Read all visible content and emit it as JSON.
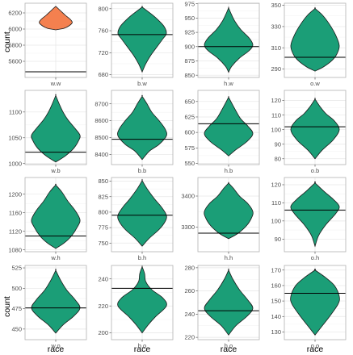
{
  "chart_data": {
    "type": "violin",
    "ylabel": "count",
    "xlabel": "race",
    "grid": true,
    "colors": {
      "highlight_fill": "#f4804f",
      "fill": "#1b9e77",
      "outline": "#1a1a1a",
      "reference_line": "#000000",
      "panel_border": "#b3b3b3",
      "grid_major": "#e6e6e6",
      "grid_minor": "#f2f2f2"
    },
    "panels": [
      {
        "label": "w.w",
        "highlight": true,
        "ylim": [
          5400,
          6320
        ],
        "yticks": [
          5600,
          5800,
          6000,
          6200
        ],
        "reference": 5470,
        "violin": [
          [
            5990,
            0.0
          ],
          [
            6010,
            0.35
          ],
          [
            6040,
            0.55
          ],
          [
            6080,
            0.68
          ],
          [
            6120,
            0.6
          ],
          [
            6170,
            0.4
          ],
          [
            6220,
            0.22
          ],
          [
            6260,
            0.08
          ],
          [
            6280,
            0.0
          ]
        ]
      },
      {
        "label": "b.w",
        "ylim": [
          675,
          810
        ],
        "yticks": [
          680,
          720,
          760,
          800
        ],
        "reference": 753,
        "violin": [
          [
            685,
            0.0
          ],
          [
            700,
            0.15
          ],
          [
            715,
            0.35
          ],
          [
            730,
            0.6
          ],
          [
            745,
            0.85
          ],
          [
            755,
            1.0
          ],
          [
            768,
            0.9
          ],
          [
            782,
            0.6
          ],
          [
            793,
            0.3
          ],
          [
            803,
            0.0
          ]
        ]
      },
      {
        "label": "h.w",
        "ylim": [
          846,
          976
        ],
        "yticks": [
          850,
          875,
          900,
          925,
          950,
          975
        ],
        "reference": 900,
        "violin": [
          [
            855,
            0.0
          ],
          [
            865,
            0.12
          ],
          [
            880,
            0.45
          ],
          [
            893,
            0.85
          ],
          [
            903,
            1.0
          ],
          [
            915,
            0.85
          ],
          [
            930,
            0.5
          ],
          [
            945,
            0.25
          ],
          [
            958,
            0.1
          ],
          [
            968,
            0.0
          ]
        ]
      },
      {
        "label": "o.w",
        "ylim": [
          282,
          352
        ],
        "yticks": [
          290,
          310,
          330,
          350
        ],
        "reference": 301,
        "violin": [
          [
            288,
            0.0
          ],
          [
            292,
            0.35
          ],
          [
            298,
            0.7
          ],
          [
            304,
            0.9
          ],
          [
            312,
            1.0
          ],
          [
            322,
            0.85
          ],
          [
            332,
            0.6
          ],
          [
            341,
            0.3
          ],
          [
            347,
            0.0
          ]
        ]
      },
      {
        "label": "w.b",
        "ylim": [
          998,
          1142
        ],
        "yticks": [
          1000,
          1050,
          1100
        ],
        "reference": 1022,
        "violin": [
          [
            1003,
            0.0
          ],
          [
            1015,
            0.4
          ],
          [
            1030,
            0.75
          ],
          [
            1045,
            0.95
          ],
          [
            1055,
            1.0
          ],
          [
            1068,
            0.8
          ],
          [
            1085,
            0.5
          ],
          [
            1100,
            0.3
          ],
          [
            1115,
            0.15
          ],
          [
            1132,
            0.0
          ]
        ]
      },
      {
        "label": "b.b",
        "ylim": [
          8340,
          8780
        ],
        "yticks": [
          8400,
          8500,
          8600,
          8700
        ],
        "reference": 8490,
        "violin": [
          [
            8370,
            0.0
          ],
          [
            8420,
            0.3
          ],
          [
            8460,
            0.7
          ],
          [
            8510,
            1.0
          ],
          [
            8550,
            0.95
          ],
          [
            8600,
            0.7
          ],
          [
            8650,
            0.4
          ],
          [
            8700,
            0.2
          ],
          [
            8745,
            0.0
          ]
        ]
      },
      {
        "label": "h.b",
        "ylim": [
          548,
          668
        ],
        "yticks": [
          550,
          575,
          600,
          625,
          650
        ],
        "reference": 614,
        "violin": [
          [
            562,
            0.0
          ],
          [
            572,
            0.3
          ],
          [
            585,
            0.75
          ],
          [
            598,
            1.0
          ],
          [
            610,
            0.8
          ],
          [
            622,
            0.5
          ],
          [
            635,
            0.3
          ],
          [
            648,
            0.12
          ],
          [
            657,
            0.0
          ]
        ]
      },
      {
        "label": "o.b",
        "ylim": [
          76,
          127
        ],
        "yticks": [
          80,
          90,
          100,
          110,
          120
        ],
        "reference": 102,
        "violin": [
          [
            80,
            0.0
          ],
          [
            86,
            0.3
          ],
          [
            93,
            0.75
          ],
          [
            100,
            1.0
          ],
          [
            106,
            0.8
          ],
          [
            111,
            0.45
          ],
          [
            116,
            0.2
          ],
          [
            121,
            0.0
          ]
        ]
      },
      {
        "label": "w.h",
        "ylim": [
          1076,
          1236
        ],
        "yticks": [
          1080,
          1120,
          1160,
          1200
        ],
        "reference": 1110,
        "violin": [
          [
            1083,
            0.0
          ],
          [
            1095,
            0.35
          ],
          [
            1110,
            0.65
          ],
          [
            1130,
            0.9
          ],
          [
            1145,
            1.0
          ],
          [
            1165,
            0.8
          ],
          [
            1185,
            0.5
          ],
          [
            1205,
            0.25
          ],
          [
            1220,
            0.0
          ]
        ]
      },
      {
        "label": "b.h",
        "ylim": [
          736,
          856
        ],
        "yticks": [
          750,
          775,
          800,
          825,
          850
        ],
        "reference": 795,
        "violin": [
          [
            745,
            0.0
          ],
          [
            758,
            0.3
          ],
          [
            772,
            0.7
          ],
          [
            785,
            0.95
          ],
          [
            795,
            1.0
          ],
          [
            808,
            0.8
          ],
          [
            822,
            0.5
          ],
          [
            838,
            0.2
          ],
          [
            851,
            0.0
          ]
        ]
      },
      {
        "label": "h.h",
        "ylim": [
          3220,
          3460
        ],
        "yticks": [
          3300,
          3400
        ],
        "reference": 3280,
        "violin": [
          [
            3262,
            0.0
          ],
          [
            3280,
            0.4
          ],
          [
            3305,
            0.75
          ],
          [
            3330,
            0.95
          ],
          [
            3350,
            1.0
          ],
          [
            3375,
            0.8
          ],
          [
            3400,
            0.45
          ],
          [
            3425,
            0.2
          ],
          [
            3442,
            0.0
          ]
        ]
      },
      {
        "label": "o.h",
        "ylim": [
          83,
          124
        ],
        "yticks": [
          90,
          100,
          110,
          120
        ],
        "reference": 106,
        "violin": [
          [
            86,
            0.0
          ],
          [
            92,
            0.15
          ],
          [
            98,
            0.45
          ],
          [
            104,
            0.85
          ],
          [
            108,
            1.0
          ],
          [
            112,
            0.75
          ],
          [
            116,
            0.4
          ],
          [
            121,
            0.0
          ]
        ]
      },
      {
        "label": "w.o",
        "ylim": [
          437,
          528
        ],
        "yticks": [
          450,
          475,
          500,
          525
        ],
        "reference": 476,
        "violin": [
          [
            445,
            0.0
          ],
          [
            455,
            0.3
          ],
          [
            466,
            0.75
          ],
          [
            476,
            1.0
          ],
          [
            486,
            0.8
          ],
          [
            498,
            0.45
          ],
          [
            510,
            0.2
          ],
          [
            522,
            0.0
          ]
        ]
      },
      {
        "label": "b.o",
        "ylim": [
          195,
          250
        ],
        "yticks": [
          200,
          220,
          240
        ],
        "reference": 233,
        "violin": [
          [
            200,
            0.0
          ],
          [
            206,
            0.25
          ],
          [
            212,
            0.55
          ],
          [
            220,
            1.0
          ],
          [
            226,
            0.85
          ],
          [
            232,
            0.4
          ],
          [
            238,
            0.15
          ],
          [
            244,
            0.1
          ],
          [
            249,
            0.0
          ]
        ]
      },
      {
        "label": "h.o",
        "ylim": [
          218,
          282
        ],
        "yticks": [
          220,
          240,
          260,
          280
        ],
        "reference": 243,
        "violin": [
          [
            222,
            0.0
          ],
          [
            230,
            0.3
          ],
          [
            238,
            0.75
          ],
          [
            245,
            1.0
          ],
          [
            252,
            0.8
          ],
          [
            261,
            0.45
          ],
          [
            270,
            0.18
          ],
          [
            278,
            0.0
          ]
        ]
      },
      {
        "label": "o.o",
        "ylim": [
          125,
          173
        ],
        "yticks": [
          130,
          140,
          150,
          160,
          170
        ],
        "reference": 155,
        "violin": [
          [
            128,
            0.0
          ],
          [
            134,
            0.3
          ],
          [
            140,
            0.6
          ],
          [
            148,
            0.95
          ],
          [
            153,
            1.0
          ],
          [
            160,
            0.8
          ],
          [
            165,
            0.45
          ],
          [
            170,
            0.0
          ]
        ]
      }
    ]
  }
}
